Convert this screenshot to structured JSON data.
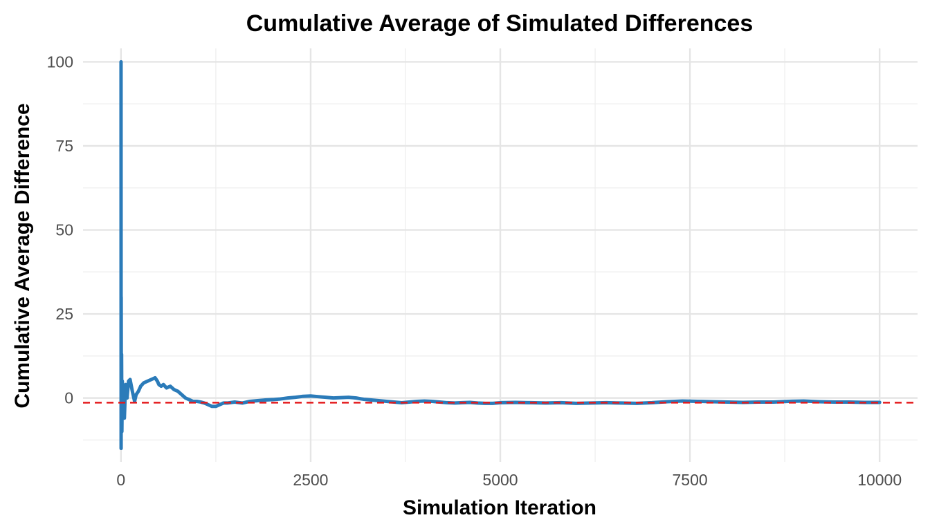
{
  "chart_data": {
    "type": "line",
    "title": "Cumulative Average of Simulated Differences",
    "xlabel": "Simulation Iteration",
    "ylabel": "Cumulative Average Difference",
    "xlim": [
      -500,
      10500
    ],
    "ylim": [
      -19,
      104
    ],
    "x_ticks": [
      0,
      2500,
      5000,
      7500,
      10000
    ],
    "x_tick_labels": [
      "0",
      "2500",
      "5000",
      "7500",
      "10000"
    ],
    "y_ticks": [
      0,
      25,
      50,
      75,
      100
    ],
    "y_tick_labels": [
      "0",
      "25",
      "50",
      "75",
      "100"
    ],
    "grid": true,
    "legend": "none",
    "series": [
      {
        "color": "#2b7bb9",
        "x": [
          1,
          2,
          3,
          5,
          8,
          12,
          18,
          25,
          35,
          45,
          60,
          80,
          100,
          120,
          150,
          180,
          200,
          230,
          260,
          300,
          350,
          400,
          450,
          480,
          500,
          530,
          560,
          600,
          650,
          700,
          750,
          800,
          850,
          900,
          950,
          1000,
          1050,
          1100,
          1150,
          1200,
          1250,
          1300,
          1350,
          1400,
          1500,
          1600,
          1700,
          1800,
          1900,
          2000,
          2100,
          2200,
          2300,
          2400,
          2500,
          2600,
          2700,
          2800,
          2900,
          3000,
          3100,
          3200,
          3300,
          3400,
          3500,
          3600,
          3700,
          3800,
          3900,
          4000,
          4100,
          4200,
          4300,
          4400,
          4500,
          4600,
          4700,
          4800,
          4900,
          5000,
          5200,
          5400,
          5600,
          5800,
          6000,
          6200,
          6400,
          6600,
          6800,
          7000,
          7200,
          7400,
          7600,
          7800,
          8000,
          8200,
          8400,
          8600,
          8800,
          9000,
          9200,
          9400,
          9600,
          9800,
          10000
        ],
        "y": [
          100,
          -15,
          30,
          -8,
          13,
          -10,
          5,
          -5,
          2,
          -6,
          4,
          0,
          5,
          5.5,
          2,
          -1,
          1,
          2,
          3.5,
          4.5,
          5,
          5.5,
          6,
          5,
          4,
          3.5,
          4,
          3,
          3.5,
          2.5,
          2,
          1,
          0,
          -0.5,
          -1,
          -1,
          -1.2,
          -1.5,
          -2,
          -2.5,
          -2.5,
          -2,
          -1.5,
          -1.5,
          -1.2,
          -1.5,
          -1,
          -0.8,
          -0.6,
          -0.5,
          -0.3,
          0,
          0.2,
          0.5,
          0.6,
          0.4,
          0.2,
          0,
          0.1,
          0.2,
          0,
          -0.4,
          -0.6,
          -0.8,
          -1,
          -1.2,
          -1.4,
          -1.2,
          -1,
          -0.9,
          -1,
          -1.2,
          -1.4,
          -1.5,
          -1.4,
          -1.3,
          -1.5,
          -1.6,
          -1.6,
          -1.4,
          -1.3,
          -1.4,
          -1.5,
          -1.4,
          -1.6,
          -1.5,
          -1.4,
          -1.5,
          -1.6,
          -1.4,
          -1.1,
          -0.9,
          -1,
          -1.1,
          -1.2,
          -1.3,
          -1.2,
          -1.2,
          -1,
          -0.9,
          -1.1,
          -1.2,
          -1.2,
          -1.3,
          -1.3
        ]
      }
    ],
    "reference_line": {
      "y": -1.4,
      "color": "#e41a1c",
      "style": "dashed"
    }
  }
}
